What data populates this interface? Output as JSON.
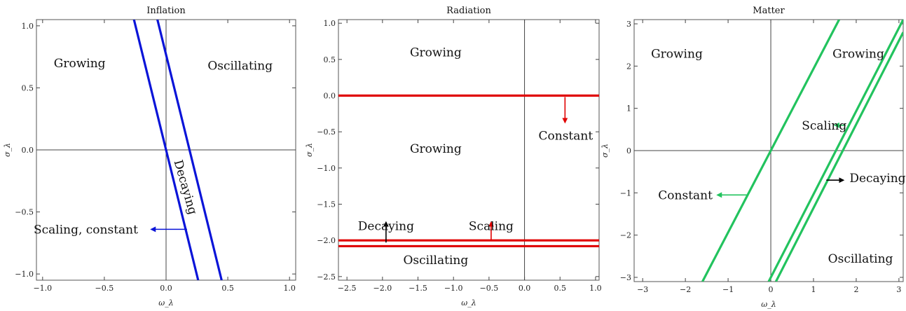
{
  "chart_data": [
    {
      "type": "line",
      "title": "Inflation",
      "xlabel": "ω_λ",
      "ylabel": "σ_λ",
      "xlim": [
        -1.05,
        1.05
      ],
      "ylim": [
        -1.05,
        1.05
      ],
      "xticks": [
        -1.0,
        -0.5,
        0.0,
        0.5,
        1.0
      ],
      "xtick_labels": [
        "−1.0",
        "−0.5",
        "0.0",
        "0.5",
        "1.0"
      ],
      "yticks": [
        -1.0,
        -0.5,
        0.0,
        0.5,
        1.0
      ],
      "ytick_labels": [
        "−1.0",
        "−0.5",
        "0.0",
        "0.5",
        "1.0"
      ],
      "color": "#0a14d8",
      "series": [
        {
          "x": [
            -0.26,
            0.26
          ],
          "y": [
            1.05,
            -1.05
          ]
        },
        {
          "x": [
            -0.07,
            0.45
          ],
          "y": [
            1.05,
            -1.05
          ]
        }
      ],
      "regions": [
        {
          "text": "Growing",
          "x": -0.7,
          "y": 0.7
        },
        {
          "text": "Oscillating",
          "x": 0.6,
          "y": 0.68
        },
        {
          "text": "Decaying",
          "x": 0.16,
          "y": -0.3,
          "rotate": 74
        },
        {
          "text": "Scaling, constant",
          "x": -0.65,
          "y": -0.64
        }
      ],
      "arrows": [
        {
          "x1": 0.17,
          "y1": -0.64,
          "x2": -0.12,
          "y2": -0.64,
          "color": "#0a14d8"
        }
      ]
    },
    {
      "type": "line",
      "title": "Radiation",
      "xlabel": "ω_λ",
      "ylabel": "σ_λ",
      "xlim": [
        -2.62,
        1.05
      ],
      "ylim": [
        -2.55,
        1.05
      ],
      "xticks": [
        -2.5,
        -2.0,
        -1.5,
        -1.0,
        -0.5,
        0.0,
        0.5,
        1.0
      ],
      "xtick_labels": [
        "−2.5",
        "−2.0",
        "−1.5",
        "−1.0",
        "−0.5",
        "0.0",
        "0.5",
        "1.0"
      ],
      "yticks": [
        -2.5,
        -2.0,
        -1.5,
        -1.0,
        -0.5,
        0.0,
        0.5,
        1.0
      ],
      "ytick_labels": [
        "−2.5",
        "−2.0",
        "−1.5",
        "−1.0",
        "−0.5",
        "0.0",
        "0.5",
        "1.0"
      ],
      "color": "#e00000",
      "series": [
        {
          "x": [
            -2.62,
            1.05
          ],
          "y": [
            0,
            0
          ]
        },
        {
          "x": [
            -2.62,
            1.05
          ],
          "y": [
            -2.0,
            -2.0
          ]
        },
        {
          "x": [
            -2.62,
            1.05
          ],
          "y": [
            -2.08,
            -2.08
          ]
        }
      ],
      "regions": [
        {
          "text": "Growing",
          "x": -1.25,
          "y": 0.6
        },
        {
          "text": "Growing",
          "x": -1.25,
          "y": -0.73
        },
        {
          "text": "Constant",
          "x": 0.58,
          "y": -0.55
        },
        {
          "text": "Decaying",
          "x": -1.95,
          "y": -1.8
        },
        {
          "text": "Scaling",
          "x": -0.47,
          "y": -1.8
        },
        {
          "text": "Oscillating",
          "x": -1.25,
          "y": -2.27
        }
      ],
      "arrows": [
        {
          "x1": 0.57,
          "y1": -0.02,
          "x2": 0.57,
          "y2": -0.37,
          "color": "#e00000"
        },
        {
          "x1": -1.95,
          "y1": -2.03,
          "x2": -1.95,
          "y2": -1.75,
          "color": "#000000"
        },
        {
          "x1": -0.47,
          "y1": -2.0,
          "x2": -0.47,
          "y2": -1.75,
          "color": "#e00000"
        }
      ]
    },
    {
      "type": "line",
      "title": "Matter",
      "xlabel": "ω_λ",
      "ylabel": "σ_λ",
      "xlim": [
        -3.2,
        3.1
      ],
      "ylim": [
        -3.1,
        3.1
      ],
      "xticks": [
        -3,
        -2,
        -1,
        0,
        1,
        2,
        3
      ],
      "xtick_labels": [
        "−3",
        "−2",
        "−1",
        "0",
        "1",
        "2",
        "3"
      ],
      "yticks": [
        -3,
        -2,
        -1,
        0,
        1,
        2,
        3
      ],
      "ytick_labels": [
        "−3",
        "−2",
        "−1",
        "0",
        "1",
        "2",
        "3"
      ],
      "color": "#22c35e",
      "series": [
        {
          "x": [
            -1.6,
            1.6
          ],
          "y": [
            -3.1,
            3.1
          ]
        },
        {
          "x": [
            -0.05,
            3.1
          ],
          "y": [
            -3.1,
            3.1
          ]
        },
        {
          "x": [
            0.12,
            3.1
          ],
          "y": [
            -3.1,
            2.8
          ]
        }
      ],
      "regions": [
        {
          "text": "Growing",
          "x": -2.2,
          "y": 2.3
        },
        {
          "text": "Growing",
          "x": 2.05,
          "y": 2.3
        },
        {
          "text": "Scaling",
          "x": 1.25,
          "y": 0.6
        },
        {
          "text": "Decaying",
          "x": 2.5,
          "y": -0.65
        },
        {
          "text": "Constant",
          "x": -2.0,
          "y": -1.05
        },
        {
          "text": "Oscillating",
          "x": 2.1,
          "y": -2.55
        }
      ],
      "arrows": [
        {
          "x1": 1.75,
          "y1": 0.6,
          "x2": 1.5,
          "y2": 0.6,
          "color": "#22c35e"
        },
        {
          "x1": -0.55,
          "y1": -1.05,
          "x2": -1.25,
          "y2": -1.05,
          "color": "#22c35e"
        },
        {
          "x1": 1.3,
          "y1": -0.7,
          "x2": 1.7,
          "y2": -0.7,
          "color": "#000000"
        }
      ]
    }
  ]
}
